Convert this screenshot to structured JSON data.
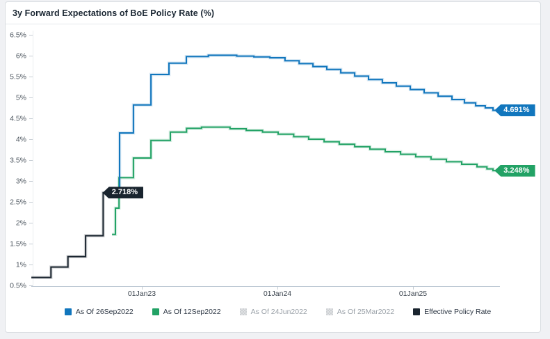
{
  "header": {
    "title": "3y Forward Expectations of BoE Policy Rate (%)"
  },
  "colors": {
    "axis_line": "#b9c5d1",
    "tick_mark": "#c5ccd3",
    "left_guide": "#e9edf0",
    "blue": "#1176bd",
    "green": "#22a265",
    "dark": "#19242e",
    "disabled_swatch": "#cdd0d3",
    "card_background": "#ffffff",
    "page_background": "#f0f1f4"
  },
  "chart_data": {
    "type": "line",
    "title": "3y Forward Expectations of BoE Policy Rate (%)",
    "step": "after",
    "grid": false,
    "legend_position": "bottom",
    "xlabel": "",
    "ylabel": "",
    "ylim": [
      0.5,
      6.5
    ],
    "xlim_years": [
      2022.185,
      2025.64
    ],
    "y_ticks": [
      {
        "v": 6.5,
        "label": "6.5%"
      },
      {
        "v": 6.0,
        "label": "6%"
      },
      {
        "v": 5.5,
        "label": "5.5%"
      },
      {
        "v": 5.0,
        "label": "5%"
      },
      {
        "v": 4.5,
        "label": "4.5%"
      },
      {
        "v": 4.0,
        "label": "4%"
      },
      {
        "v": 3.5,
        "label": "3.5%"
      },
      {
        "v": 3.0,
        "label": "3%"
      },
      {
        "v": 2.5,
        "label": "2.5%"
      },
      {
        "v": 2.0,
        "label": "2%"
      },
      {
        "v": 1.5,
        "label": "1.5%"
      },
      {
        "v": 1.0,
        "label": "1%"
      },
      {
        "v": 0.5,
        "label": "0.5%"
      }
    ],
    "x_ticks": [
      {
        "t": 2023.0,
        "label": "01Jan23"
      },
      {
        "t": 2024.0,
        "label": "01Jan24"
      },
      {
        "t": 2025.0,
        "label": "01Jan25"
      }
    ],
    "series": [
      {
        "name": "As Of 26Sep2022",
        "color": "#1176bd",
        "visible": true,
        "end_label": "4.691%",
        "end_value": 4.691,
        "t_end": 2025.632,
        "points": [
          [
            2022.727,
            2.718
          ],
          [
            2022.836,
            4.15
          ],
          [
            2022.938,
            4.82
          ],
          [
            2023.067,
            5.55
          ],
          [
            2023.2,
            5.82
          ],
          [
            2023.328,
            5.98
          ],
          [
            2023.49,
            6.01
          ],
          [
            2023.7,
            5.99
          ],
          [
            2023.826,
            5.97
          ],
          [
            2023.944,
            5.95
          ],
          [
            2024.056,
            5.88
          ],
          [
            2024.16,
            5.81
          ],
          [
            2024.262,
            5.74
          ],
          [
            2024.364,
            5.67
          ],
          [
            2024.467,
            5.59
          ],
          [
            2024.57,
            5.51
          ],
          [
            2024.672,
            5.43
          ],
          [
            2024.774,
            5.35
          ],
          [
            2024.877,
            5.27
          ],
          [
            2024.98,
            5.19
          ],
          [
            2025.082,
            5.11
          ],
          [
            2025.185,
            5.03
          ],
          [
            2025.287,
            4.95
          ],
          [
            2025.379,
            4.87
          ],
          [
            2025.462,
            4.8
          ],
          [
            2025.533,
            4.75
          ],
          [
            2025.59,
            4.691
          ]
        ]
      },
      {
        "name": "As Of 12Sep2022",
        "color": "#22a265",
        "visible": true,
        "end_label": "3.248%",
        "end_value": 3.248,
        "t_end": 2025.632,
        "points": [
          [
            2022.78,
            1.72
          ],
          [
            2022.805,
            2.35
          ],
          [
            2022.832,
            3.08
          ],
          [
            2022.938,
            3.55
          ],
          [
            2023.067,
            3.97
          ],
          [
            2023.21,
            4.17
          ],
          [
            2023.33,
            4.26
          ],
          [
            2023.44,
            4.29
          ],
          [
            2023.65,
            4.25
          ],
          [
            2023.77,
            4.21
          ],
          [
            2023.89,
            4.17
          ],
          [
            2024.005,
            4.12
          ],
          [
            2024.12,
            4.06
          ],
          [
            2024.23,
            4.0
          ],
          [
            2024.344,
            3.94
          ],
          [
            2024.456,
            3.88
          ],
          [
            2024.57,
            3.82
          ],
          [
            2024.682,
            3.76
          ],
          [
            2024.795,
            3.7
          ],
          [
            2024.908,
            3.64
          ],
          [
            2025.02,
            3.58
          ],
          [
            2025.133,
            3.52
          ],
          [
            2025.246,
            3.46
          ],
          [
            2025.359,
            3.4
          ],
          [
            2025.472,
            3.34
          ],
          [
            2025.545,
            3.29
          ],
          [
            2025.59,
            3.248
          ]
        ]
      },
      {
        "name": "As Of 24Jun2022",
        "color": "#cdd0d3",
        "visible": false,
        "points": []
      },
      {
        "name": "As Of 25Mar2022",
        "color": "#cdd0d3",
        "visible": false,
        "points": []
      },
      {
        "name": "Effective Policy Rate",
        "color": "#19242e",
        "visible": true,
        "end_label": "2.718%",
        "end_value": 2.718,
        "t_end": 2022.742,
        "points": [
          [
            2022.185,
            0.69
          ],
          [
            2022.33,
            0.94
          ],
          [
            2022.455,
            1.19
          ],
          [
            2022.585,
            1.69
          ],
          [
            2022.715,
            2.718
          ]
        ]
      }
    ]
  }
}
